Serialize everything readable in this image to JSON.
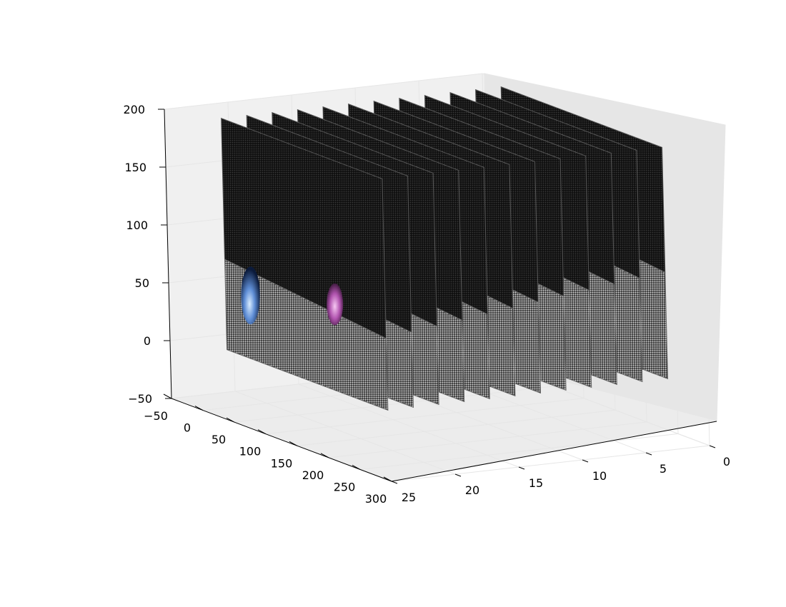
{
  "chart_data": {
    "type": "scatter",
    "projection": "3d",
    "title": "",
    "xlabel": "",
    "ylabel": "",
    "zlabel": "",
    "grid": true,
    "axes": {
      "x": {
        "ticks": [
          -50,
          0,
          50,
          100,
          150,
          200,
          250,
          300
        ],
        "labels": [
          "−50",
          "0",
          "50",
          "100",
          "150",
          "200",
          "250",
          "300"
        ],
        "range": [
          -50,
          300
        ]
      },
      "y": {
        "ticks": [
          0,
          5,
          10,
          15,
          20,
          25
        ],
        "labels": [
          "0",
          "5",
          "10",
          "15",
          "20",
          "25"
        ],
        "range": [
          0,
          25
        ]
      },
      "z": {
        "ticks": [
          -50,
          0,
          50,
          100,
          150,
          200
        ],
        "labels": [
          "−50",
          "0",
          "50",
          "100",
          "150",
          "200"
        ],
        "range": [
          -50,
          200
        ]
      }
    },
    "slices": {
      "count": 12,
      "y_positions": [
        1,
        3,
        5,
        7,
        9,
        11,
        13,
        15,
        17,
        19,
        21,
        23
      ],
      "x_range": [
        0,
        256
      ],
      "z_range": [
        0,
        200
      ],
      "boundary_z_front": 70,
      "boundary_z_back": 100,
      "upper_color": "#1a1a1a",
      "lower_color": "#b8b8b8"
    },
    "blobs": [
      {
        "name": "",
        "color": "#4f7fd0",
        "x": 40,
        "y": 23,
        "z": 55,
        "radius_z": 25,
        "radius_x": 22
      },
      {
        "name": "",
        "color": "#c65ac4",
        "x": 175,
        "y": 23,
        "z": 75,
        "radius_z": 18,
        "radius_x": 18
      }
    ]
  }
}
